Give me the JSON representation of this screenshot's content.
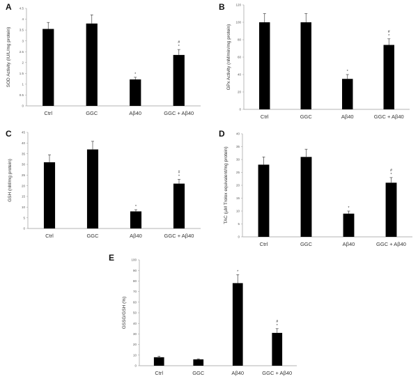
{
  "chart_data": [
    {
      "panel": "A",
      "type": "bar",
      "categories": [
        "Ctrl",
        "GGC",
        "Aβ40",
        "GGC + Aβ40"
      ],
      "values": [
        3.55,
        3.8,
        1.22,
        2.35
      ],
      "errors": [
        0.3,
        0.4,
        0.1,
        0.25
      ],
      "significance": [
        "",
        "",
        "*",
        "#\n*"
      ],
      "ylabel": "SOD Activity (IU/L/mg protein)",
      "ylim": [
        0,
        4.5
      ],
      "yticks": [
        "0",
        "0.5",
        "1",
        "1.5",
        "2",
        "2.5",
        "3",
        "3.5",
        "4",
        "4.5"
      ],
      "grid": false,
      "bar_color": "#000000"
    },
    {
      "panel": "B",
      "type": "bar",
      "categories": [
        "Ctrl",
        "GGC",
        "Aβ40",
        "GGC + Aβ40"
      ],
      "values": [
        100,
        100,
        35,
        74
      ],
      "errors": [
        10,
        10,
        5,
        7
      ],
      "significance": [
        "",
        "",
        "*",
        "#\n*"
      ],
      "ylabel": "GPx Activity (nM/min/mg protein)",
      "ylim": [
        0,
        120
      ],
      "yticks": [
        "0",
        "20",
        "40",
        "60",
        "80",
        "100",
        "120"
      ],
      "grid": false,
      "bar_color": "#000000"
    },
    {
      "panel": "C",
      "type": "bar",
      "categories": [
        "Ctrl",
        "GGC",
        "Aβ40",
        "GGC + Aβ40"
      ],
      "values": [
        31,
        37,
        8,
        21
      ],
      "errors": [
        3.5,
        3.8,
        0.8,
        2
      ],
      "significance": [
        "",
        "",
        "*",
        "#\n*"
      ],
      "ylabel": "GSH (nM/mg protein)",
      "ylim": [
        0,
        45
      ],
      "yticks": [
        "0",
        "5",
        "10",
        "15",
        "20",
        "25",
        "30",
        "35",
        "40",
        "45"
      ],
      "grid": false,
      "bar_color": "#000000"
    },
    {
      "panel": "D",
      "type": "bar",
      "categories": [
        "Ctrl",
        "GGC",
        "Aβ40",
        "GGC + Aβ40"
      ],
      "values": [
        28,
        31,
        9,
        21
      ],
      "errors": [
        3,
        3,
        1,
        2
      ],
      "significance": [
        "",
        "",
        "*",
        "#\n*"
      ],
      "ylabel": "TAC (µM Trolox equivalent/mg protein)",
      "ylim": [
        0,
        40
      ],
      "yticks": [
        "0",
        "5",
        "10",
        "15",
        "20",
        "25",
        "30",
        "35",
        "40"
      ],
      "grid": false,
      "bar_color": "#000000"
    },
    {
      "panel": "E",
      "type": "bar",
      "categories": [
        "Ctrl",
        "GGC",
        "Aβ40",
        "GGC + Aβ40"
      ],
      "values": [
        8,
        6,
        78,
        31
      ],
      "errors": [
        1,
        0.5,
        8,
        4
      ],
      "significance": [
        "",
        "",
        "*",
        "#\n*"
      ],
      "ylabel": "GSSG/GSH (%)",
      "ylim": [
        0,
        100
      ],
      "yticks": [
        "0",
        "10",
        "20",
        "30",
        "40",
        "50",
        "60",
        "70",
        "80",
        "90",
        "100"
      ],
      "grid": false,
      "bar_color": "#000000"
    }
  ]
}
